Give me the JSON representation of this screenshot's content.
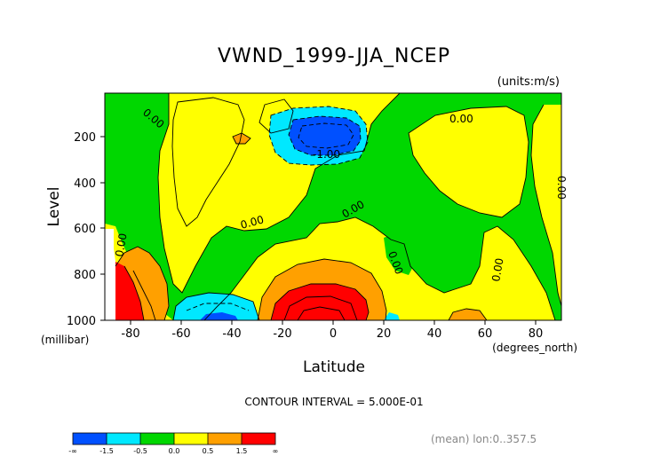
{
  "chart_data": {
    "type": "contour",
    "title": "VWND_1999-JJA_NCEP",
    "units_label": "(units:m/s)",
    "xlabel": "Latitude",
    "xunit_label": "(degrees_north)",
    "ylabel": "Level",
    "yunit_label": "(millibar)",
    "x_ticks": [
      "-80",
      "-60",
      "-40",
      "-20",
      "0",
      "20",
      "40",
      "60",
      "80"
    ],
    "y_ticks": [
      "200",
      "400",
      "600",
      "800",
      "1000"
    ],
    "xlim": [
      -90,
      90
    ],
    "ylim": [
      1000,
      10
    ],
    "contour_labels": [
      "0.00",
      "-1.00",
      "0.00",
      "0.00",
      "0.00",
      "0.00",
      "0.00",
      "0.00",
      "0.00"
    ],
    "contour_interval_text": "CONTOUR INTERVAL = 5.000E-01",
    "mean_text": "(mean) lon:0..357.5",
    "colorbar": {
      "labels": [
        "-∞",
        "-1.5",
        "-0.5",
        "0.0",
        "0.5",
        "1.5",
        "∞"
      ],
      "colors": [
        "#0050ff",
        "#00e8ff",
        "#00d700",
        "#ffff00",
        "#ffa000",
        "#ff0000"
      ]
    },
    "colors": {
      "strong_negative": "#0050ff",
      "negative": "#00e8ff",
      "near_zero_negative": "#00d700",
      "near_zero_positive": "#ffff00",
      "positive": "#ffa000",
      "strong_positive": "#ff0000"
    }
  }
}
